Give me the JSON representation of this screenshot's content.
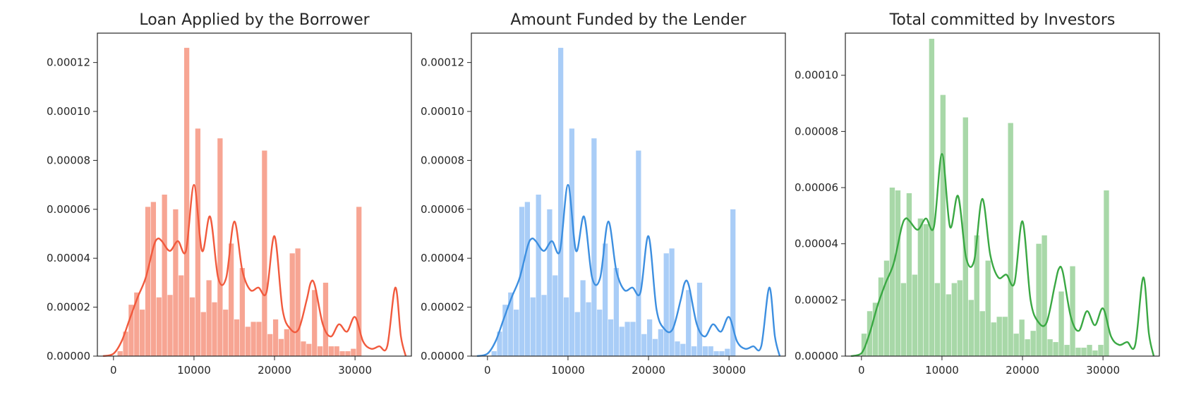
{
  "chart_data": [
    {
      "type": "bar",
      "subtype": "histogram-with-density-line",
      "title": "Loan Applied by the Borrower",
      "color": "#f15a3d",
      "bar_color": "#f7a593",
      "xlabel": "",
      "ylabel": "",
      "xlim": [
        -2000,
        37000
      ],
      "ylim": [
        0,
        0.000132
      ],
      "xticks": [
        0,
        10000,
        20000,
        30000
      ],
      "xtick_labels": [
        "0",
        "10000",
        "20000",
        "30000"
      ],
      "yticks": [
        0,
        2e-05,
        4e-05,
        6e-05,
        8e-05,
        0.0001,
        0.00012
      ],
      "ytick_labels": [
        "0.00000",
        "0.00002",
        "0.00004",
        "0.00006",
        "0.00008",
        "0.00010",
        "0.00012"
      ],
      "bins": {
        "start": 500,
        "width": 690,
        "values": [
          2e-06,
          1e-05,
          2.1e-05,
          2.6e-05,
          1.9e-05,
          6.1e-05,
          6.3e-05,
          2.4e-05,
          6.6e-05,
          2.5e-05,
          6e-05,
          3.3e-05,
          0.000126,
          2.4e-05,
          9.3e-05,
          1.8e-05,
          3.1e-05,
          2.2e-05,
          8.9e-05,
          1.9e-05,
          4.6e-05,
          1.5e-05,
          3.6e-05,
          1.2e-05,
          1.4e-05,
          1.4e-05,
          8.4e-05,
          9e-06,
          1.5e-05,
          7e-06,
          1.1e-05,
          4.2e-05,
          4.4e-05,
          6e-06,
          5e-06,
          2.7e-05,
          4e-06,
          3e-05,
          4e-06,
          4e-06,
          2e-06,
          2e-06,
          3e-06,
          6.1e-05
        ]
      },
      "density": {
        "x": [
          -1300,
          0,
          1000,
          2000,
          3000,
          4000,
          5000,
          5500,
          6000,
          7000,
          8000,
          9000,
          10000,
          11000,
          12000,
          13000,
          14000,
          15000,
          16000,
          17000,
          18000,
          19000,
          20000,
          21000,
          22000,
          23000,
          24000,
          24500,
          25000,
          26000,
          27000,
          28000,
          29000,
          30000,
          31000,
          32000,
          33000,
          34000,
          35000,
          35700,
          36300
        ],
        "y": [
          0,
          1e-06,
          6e-06,
          1.5e-05,
          2.4e-05,
          3.2e-05,
          4.5e-05,
          4.8e-05,
          4.7e-05,
          4.3e-05,
          4.7e-05,
          4.3e-05,
          7e-05,
          4.3e-05,
          5.7e-05,
          3.2e-05,
          3.2e-05,
          5.5e-05,
          3.5e-05,
          2.7e-05,
          2.8e-05,
          2.6e-05,
          4.9e-05,
          1.9e-05,
          1.1e-05,
          1.1e-05,
          2.3e-05,
          3e-05,
          2.9e-05,
          1.3e-05,
          8e-06,
          1.3e-05,
          1e-05,
          1.6e-05,
          6e-06,
          3e-06,
          4e-06,
          4e-06,
          2.8e-05,
          8e-06,
          0.0
        ]
      }
    },
    {
      "type": "bar",
      "subtype": "histogram-with-density-line",
      "title": "Amount Funded by the Lender",
      "color": "#3d8fe0",
      "bar_color": "#a9cdf7",
      "xlabel": "",
      "ylabel": "",
      "xlim": [
        -2000,
        37000
      ],
      "ylim": [
        0,
        0.000132
      ],
      "xticks": [
        0,
        10000,
        20000,
        30000
      ],
      "xtick_labels": [
        "0",
        "10000",
        "20000",
        "30000"
      ],
      "yticks": [
        0,
        2e-05,
        4e-05,
        6e-05,
        8e-05,
        0.0001,
        0.00012
      ],
      "ytick_labels": [
        "0.00000",
        "0.00002",
        "0.00004",
        "0.00006",
        "0.00008",
        "0.00010",
        "0.00012"
      ],
      "bins": {
        "start": 500,
        "width": 690,
        "values": [
          2e-06,
          1e-05,
          2.1e-05,
          2.6e-05,
          1.9e-05,
          6.1e-05,
          6.3e-05,
          2.4e-05,
          6.6e-05,
          2.5e-05,
          6e-05,
          3.3e-05,
          0.000126,
          2.4e-05,
          9.3e-05,
          1.8e-05,
          3.1e-05,
          2.2e-05,
          8.9e-05,
          1.9e-05,
          4.6e-05,
          1.5e-05,
          3.6e-05,
          1.2e-05,
          1.4e-05,
          1.4e-05,
          8.4e-05,
          9e-06,
          1.5e-05,
          7e-06,
          1.1e-05,
          4.2e-05,
          4.4e-05,
          6e-06,
          5e-06,
          2.7e-05,
          4e-06,
          3e-05,
          4e-06,
          4e-06,
          2e-06,
          2e-06,
          3e-06,
          6e-05
        ]
      },
      "density": {
        "x": [
          -1300,
          0,
          1000,
          2000,
          3000,
          4000,
          5000,
          5500,
          6000,
          7000,
          8000,
          9000,
          10000,
          11000,
          12000,
          13000,
          14000,
          15000,
          16000,
          17000,
          18000,
          19000,
          20000,
          21000,
          22000,
          23000,
          24000,
          24500,
          25000,
          26000,
          27000,
          28000,
          29000,
          30000,
          31000,
          32000,
          33000,
          34000,
          35000,
          35700,
          36300
        ],
        "y": [
          0,
          1e-06,
          6e-06,
          1.5e-05,
          2.4e-05,
          3.2e-05,
          4.5e-05,
          4.8e-05,
          4.7e-05,
          4.3e-05,
          4.7e-05,
          4.3e-05,
          7e-05,
          4.3e-05,
          5.7e-05,
          3.2e-05,
          3.2e-05,
          5.5e-05,
          3.5e-05,
          2.7e-05,
          2.8e-05,
          2.6e-05,
          4.9e-05,
          1.9e-05,
          1.1e-05,
          1.1e-05,
          2.3e-05,
          3e-05,
          2.9e-05,
          1.3e-05,
          8e-06,
          1.3e-05,
          1e-05,
          1.6e-05,
          6e-06,
          3e-06,
          4e-06,
          4e-06,
          2.8e-05,
          8e-06,
          0.0
        ]
      }
    },
    {
      "type": "bar",
      "subtype": "histogram-with-density-line",
      "title": "Total committed by Investors",
      "color": "#3aa843",
      "bar_color": "#a8d8a8",
      "xlabel": "",
      "ylabel": "",
      "xlim": [
        -2000,
        37000
      ],
      "ylim": [
        0,
        0.000115
      ],
      "xticks": [
        0,
        10000,
        20000,
        30000
      ],
      "xtick_labels": [
        "0",
        "10000",
        "20000",
        "30000"
      ],
      "yticks": [
        0,
        2e-05,
        4e-05,
        6e-05,
        8e-05,
        0.0001
      ],
      "ytick_labels": [
        "0.00000",
        "0.00002",
        "0.00004",
        "0.00006",
        "0.00008",
        "0.00010"
      ],
      "bins": {
        "start": 0,
        "width": 700,
        "values": [
          8e-06,
          1.6e-05,
          1.9e-05,
          2.8e-05,
          3.4e-05,
          6e-05,
          5.9e-05,
          2.6e-05,
          5.8e-05,
          2.9e-05,
          4.9e-05,
          4.7e-05,
          0.000113,
          2.6e-05,
          9.3e-05,
          2.2e-05,
          2.6e-05,
          2.7e-05,
          8.5e-05,
          2e-05,
          4.3e-05,
          1.6e-05,
          3.4e-05,
          1.2e-05,
          1.4e-05,
          1.4e-05,
          8.3e-05,
          8e-06,
          1.3e-05,
          6e-06,
          9e-06,
          4e-05,
          4.3e-05,
          6e-06,
          5e-06,
          2.3e-05,
          4e-06,
          3.2e-05,
          3e-06,
          3e-06,
          4e-06,
          2e-06,
          4e-06,
          5.9e-05
        ]
      },
      "density": {
        "x": [
          -1300,
          0,
          1000,
          2000,
          3000,
          4000,
          5000,
          5500,
          6000,
          7000,
          8000,
          9000,
          10000,
          11000,
          12000,
          13000,
          14000,
          15000,
          16000,
          17000,
          18000,
          19000,
          20000,
          21000,
          22000,
          23000,
          24000,
          24500,
          25000,
          26000,
          27000,
          28000,
          29000,
          30000,
          31000,
          32000,
          33000,
          34000,
          35000,
          35700,
          36300
        ],
        "y": [
          0,
          1e-06,
          8e-06,
          1.8e-05,
          2.6e-05,
          3.3e-05,
          4.6e-05,
          4.9e-05,
          4.8e-05,
          4.5e-05,
          4.9e-05,
          4.6e-05,
          7.2e-05,
          4.6e-05,
          5.7e-05,
          3.5e-05,
          3.4e-05,
          5.6e-05,
          3.6e-05,
          2.8e-05,
          2.9e-05,
          2.6e-05,
          4.8e-05,
          2e-05,
          1.2e-05,
          1.2e-05,
          2.5e-05,
          3.1e-05,
          3e-05,
          1.4e-05,
          9e-06,
          1.6e-05,
          1.1e-05,
          1.7e-05,
          7e-06,
          4e-06,
          5e-06,
          4e-06,
          2.8e-05,
          8e-06,
          0.0
        ]
      }
    }
  ]
}
